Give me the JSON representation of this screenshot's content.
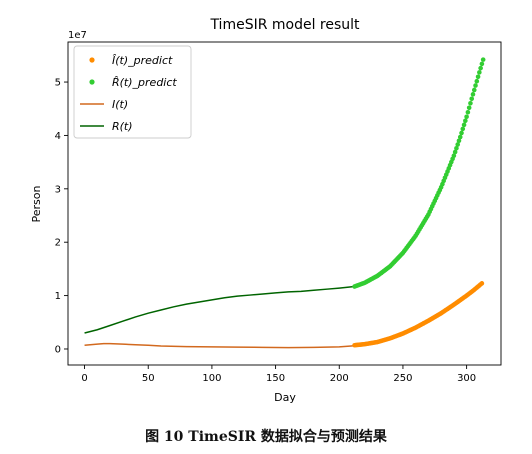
{
  "caption": "图 10  TimeSIR 数据拟合与预测结果",
  "chart_data": {
    "type": "line",
    "title": "TimeSIR model result",
    "xlabel": "Day",
    "ylabel": "Person",
    "y_offset_text": "1e7",
    "xlim": [
      -13,
      327
    ],
    "ylim": [
      -0.3,
      5.75
    ],
    "y_multiplier": 10000000,
    "xticks": [
      0,
      50,
      100,
      150,
      200,
      250,
      300
    ],
    "yticks": [
      0,
      1,
      2,
      3,
      4,
      5
    ],
    "grid": false,
    "legend_position": "top-left",
    "colors": {
      "I_fit": "#d2691e",
      "R_fit": "#006400",
      "I_predict": "#ff8c00",
      "R_predict": "#32cd32"
    },
    "series": [
      {
        "name": "Î(t)_predict",
        "legend_main": "I",
        "legend_sub": "_predict",
        "hat": true,
        "kind": "scatter",
        "color_key": "I_predict",
        "x": [
          212,
          220,
          230,
          240,
          250,
          260,
          270,
          280,
          290,
          300,
          305,
          310,
          312
        ],
        "y": [
          0.07,
          0.09,
          0.13,
          0.2,
          0.29,
          0.4,
          0.53,
          0.67,
          0.83,
          1.0,
          1.09,
          1.19,
          1.23
        ]
      },
      {
        "name": "R̂(t)_predict",
        "legend_main": "R",
        "legend_sub": "_predict",
        "hat": true,
        "kind": "scatter",
        "color_key": "R_predict",
        "x": [
          212,
          220,
          230,
          240,
          250,
          260,
          270,
          280,
          290,
          295,
          300,
          305,
          310,
          313
        ],
        "y": [
          1.17,
          1.24,
          1.37,
          1.55,
          1.8,
          2.12,
          2.52,
          3.03,
          3.62,
          3.97,
          4.35,
          4.77,
          5.18,
          5.42
        ]
      },
      {
        "name": "I(t)",
        "legend_main": "I",
        "legend_sub": "",
        "hat": false,
        "kind": "line",
        "color_key": "I_fit",
        "x": [
          0,
          10,
          15,
          20,
          30,
          40,
          50,
          60,
          80,
          100,
          120,
          140,
          160,
          180,
          200,
          212
        ],
        "y": [
          0.07,
          0.09,
          0.1,
          0.1,
          0.09,
          0.08,
          0.07,
          0.055,
          0.045,
          0.04,
          0.035,
          0.03,
          0.025,
          0.03,
          0.04,
          0.06
        ]
      },
      {
        "name": "R(t)",
        "legend_main": "R",
        "legend_sub": "",
        "hat": false,
        "kind": "line",
        "color_key": "R_fit",
        "x": [
          0,
          10,
          20,
          30,
          40,
          50,
          60,
          70,
          80,
          90,
          100,
          110,
          120,
          130,
          140,
          150,
          160,
          170,
          180,
          190,
          200,
          212
        ],
        "y": [
          0.3,
          0.36,
          0.44,
          0.52,
          0.6,
          0.67,
          0.73,
          0.79,
          0.84,
          0.88,
          0.92,
          0.96,
          0.99,
          1.01,
          1.03,
          1.05,
          1.07,
          1.08,
          1.1,
          1.12,
          1.14,
          1.17
        ]
      }
    ]
  }
}
